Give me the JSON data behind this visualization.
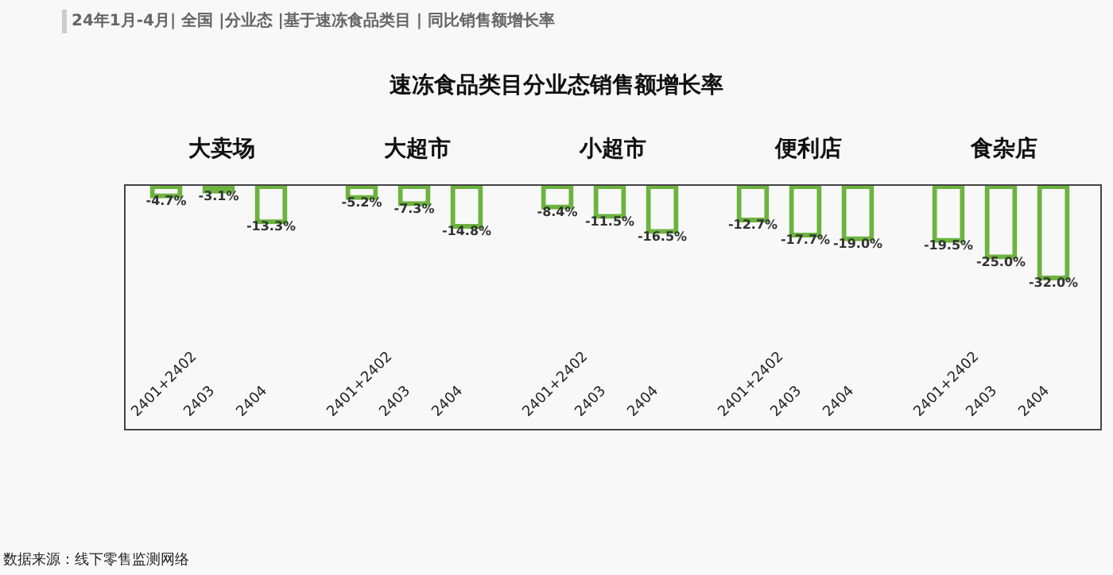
{
  "chart_data": [
    {
      "type": "other",
      "title": "速冻食品类目分业态销售额增长率",
      "subtitle": "24年1月-4月| 全国 |分业态 |基于速冻食品类目 | 同比销售额增长率",
      "annotations": [
        "数据来源：线下零售监测网络"
      ]
    },
    {
      "type": "bar",
      "title": "大卖场",
      "categories": [
        "2401+2402",
        "2403",
        "2404"
      ],
      "values": [
        -4.7,
        -3.1,
        -13.3
      ],
      "value_labels": [
        "-4.7%",
        "-3.1%",
        "-13.3%"
      ],
      "color": "#6db33f",
      "ylim": [
        -82,
        0
      ],
      "tick_labels": "x"
    },
    {
      "type": "bar",
      "title": "大超市",
      "categories": [
        "2401+2402",
        "2403",
        "2404"
      ],
      "values": [
        -5.2,
        -7.3,
        -14.8
      ],
      "value_labels": [
        "-5.2%",
        "-7.3%",
        "-14.8%"
      ],
      "color": "#6db33f",
      "ylim": [
        -82,
        0
      ],
      "tick_labels": "x"
    },
    {
      "type": "bar",
      "title": "小超市",
      "categories": [
        "2401+2402",
        "2403",
        "2404"
      ],
      "values": [
        -8.4,
        -11.5,
        -16.5
      ],
      "value_labels": [
        "-8.4%",
        "-11.5%",
        "-16.5%"
      ],
      "color": "#6db33f",
      "ylim": [
        -82,
        0
      ],
      "tick_labels": "x"
    },
    {
      "type": "bar",
      "title": "便利店",
      "categories": [
        "2401+2402",
        "2403",
        "2404"
      ],
      "values": [
        -12.7,
        -17.7,
        -19.0
      ],
      "value_labels": [
        "-12.7%",
        "-17.7%",
        "-19.0%"
      ],
      "color": "#6db33f",
      "ylim": [
        -82,
        0
      ],
      "tick_labels": "x"
    },
    {
      "type": "bar",
      "title": "食杂店",
      "categories": [
        "2401+2402",
        "2403",
        "2404"
      ],
      "values": [
        -19.5,
        -25.0,
        -32.0
      ],
      "value_labels": [
        "-19.5%",
        "-25.0%",
        "-32.0%"
      ],
      "color": "#6db33f",
      "ylim": [
        -82,
        0
      ],
      "tick_labels": "x"
    }
  ]
}
